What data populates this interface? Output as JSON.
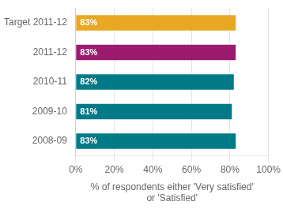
{
  "chart_data": {
    "type": "bar",
    "orientation": "horizontal",
    "categories": [
      "Target 2011-12",
      "2011-12",
      "2010-11",
      "2009-10",
      "2008-09"
    ],
    "values": [
      83,
      83,
      82,
      81,
      83
    ],
    "value_labels": [
      "83%",
      "83%",
      "82%",
      "81%",
      "83%"
    ],
    "data_labels": true,
    "colors": [
      "#e8a824",
      "#9b1b6e",
      "#007a87",
      "#007a87",
      "#007a87"
    ],
    "xlabel": "% of respondents either 'Very satisfied'\nor 'Satisfied'",
    "xlim": [
      0,
      100
    ],
    "xticks": [
      {
        "value": 0,
        "label": "0%"
      },
      {
        "value": 20,
        "label": "20%"
      },
      {
        "value": 40,
        "label": "40%"
      },
      {
        "value": 60,
        "label": "60%"
      },
      {
        "value": 80,
        "label": "80%"
      },
      {
        "value": 100,
        "label": "100%"
      }
    ],
    "grid": true
  }
}
